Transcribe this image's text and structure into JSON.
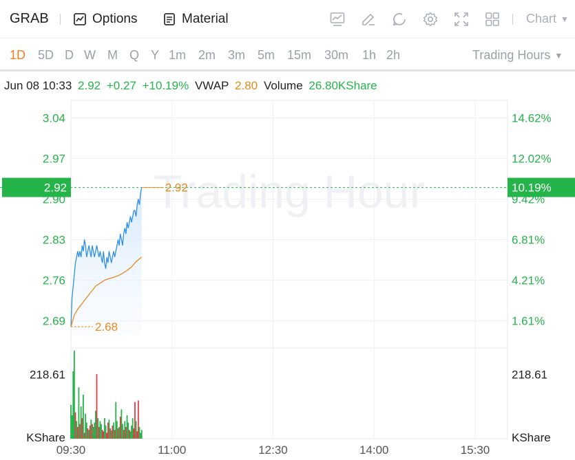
{
  "toolbar": {
    "ticker": "GRAB",
    "options_label": "Options",
    "material_label": "Material",
    "chart_label": "Chart"
  },
  "periods": [
    "1D",
    "5D",
    "D",
    "W",
    "M",
    "Q",
    "Y",
    "1m",
    "2m",
    "3m",
    "5m",
    "15m",
    "30m",
    "1h",
    "2h"
  ],
  "active_period": "1D",
  "trading_hours_label": "Trading Hours",
  "info": {
    "datetime": "Jun 08 10:33",
    "price": "2.92",
    "change": "+0.27",
    "change_pct": "+10.19%",
    "vwap_label": "VWAP",
    "vwap_value": "2.80",
    "volume_label": "Volume",
    "volume_value": "26.80KShare"
  },
  "colors": {
    "green": "#25b44a",
    "red": "#e8394a",
    "orange": "#e8891d",
    "price_line": "#2f8fe6",
    "vwap_line": "#e8891d"
  },
  "chart_data": {
    "type": "line",
    "watermark": "Trading Hour",
    "x_ticks": [
      "09:30",
      "11:00",
      "12:30",
      "14:00",
      "15:30"
    ],
    "y_ticks": [
      3.04,
      2.97,
      2.9,
      2.83,
      2.76,
      2.69
    ],
    "y_ticks_label": [
      "3.04",
      "2.97",
      "2.90",
      "2.83",
      "2.76",
      "2.69"
    ],
    "pct_ticks_label": [
      "14.62%",
      "12.02%",
      "9.42%",
      "6.81%",
      "4.21%",
      "1.61%"
    ],
    "ylim": [
      2.66,
      3.07
    ],
    "current_price": 2.92,
    "current_price_label": "2.92",
    "current_pct_label": "10.19%",
    "high_label": "2.92",
    "low_label": "2.68",
    "low_price": 2.68,
    "volume_label": "218.61",
    "volume_unit": "KShare",
    "volume_ymax": 300,
    "price_series": {
      "minutes": [
        0,
        1,
        2,
        3,
        4,
        5,
        6,
        7,
        8,
        9,
        10,
        11,
        12,
        13,
        14,
        15,
        16,
        17,
        18,
        19,
        20,
        21,
        22,
        23,
        24,
        25,
        26,
        27,
        28,
        29,
        30,
        31,
        32,
        33,
        34,
        35,
        36,
        37,
        38,
        39,
        40,
        41,
        42,
        43,
        44,
        45,
        46,
        47,
        48,
        49,
        50,
        51,
        52,
        53,
        54,
        55,
        56,
        57,
        58,
        59,
        60,
        61,
        62,
        63
      ],
      "values": [
        2.68,
        2.73,
        2.75,
        2.77,
        2.79,
        2.8,
        2.81,
        2.8,
        2.81,
        2.8,
        2.82,
        2.81,
        2.83,
        2.82,
        2.8,
        2.81,
        2.82,
        2.81,
        2.8,
        2.82,
        2.81,
        2.8,
        2.81,
        2.82,
        2.81,
        2.8,
        2.81,
        2.8,
        2.79,
        2.81,
        2.79,
        2.78,
        2.8,
        2.79,
        2.81,
        2.8,
        2.79,
        2.8,
        2.81,
        2.8,
        2.81,
        2.82,
        2.83,
        2.82,
        2.84,
        2.83,
        2.82,
        2.84,
        2.85,
        2.84,
        2.86,
        2.85,
        2.86,
        2.87,
        2.86,
        2.87,
        2.88,
        2.88,
        2.87,
        2.89,
        2.9,
        2.89,
        2.91,
        2.92
      ]
    },
    "vwap_series": {
      "minutes": [
        0,
        3,
        6,
        10,
        14,
        18,
        22,
        26,
        30,
        34,
        38,
        42,
        46,
        50,
        54,
        58,
        63
      ],
      "values": [
        2.68,
        2.7,
        2.71,
        2.72,
        2.73,
        2.74,
        2.75,
        2.755,
        2.76,
        2.763,
        2.765,
        2.768,
        2.772,
        2.777,
        2.783,
        2.792,
        2.8
      ]
    },
    "volume_bars": [
      {
        "m": 0,
        "v": 115,
        "c": "g"
      },
      {
        "m": 1,
        "v": 80,
        "c": "g"
      },
      {
        "m": 2,
        "v": 230,
        "c": "g"
      },
      {
        "m": 3,
        "v": 300,
        "c": "g"
      },
      {
        "m": 4,
        "v": 90,
        "c": "r"
      },
      {
        "m": 5,
        "v": 60,
        "c": "g"
      },
      {
        "m": 6,
        "v": 40,
        "c": "r"
      },
      {
        "m": 7,
        "v": 175,
        "c": "g"
      },
      {
        "m": 8,
        "v": 50,
        "c": "r"
      },
      {
        "m": 9,
        "v": 110,
        "c": "g"
      },
      {
        "m": 10,
        "v": 70,
        "c": "r"
      },
      {
        "m": 11,
        "v": 150,
        "c": "g"
      },
      {
        "m": 12,
        "v": 20,
        "c": "r"
      },
      {
        "m": 13,
        "v": 85,
        "c": "g"
      },
      {
        "m": 14,
        "v": 55,
        "c": "g"
      },
      {
        "m": 15,
        "v": 35,
        "c": "r"
      },
      {
        "m": 16,
        "v": 30,
        "c": "g"
      },
      {
        "m": 17,
        "v": 45,
        "c": "r"
      },
      {
        "m": 18,
        "v": 65,
        "c": "g"
      },
      {
        "m": 19,
        "v": 50,
        "c": "r"
      },
      {
        "m": 20,
        "v": 40,
        "c": "g"
      },
      {
        "m": 21,
        "v": 55,
        "c": "g"
      },
      {
        "m": 22,
        "v": 95,
        "c": "g"
      },
      {
        "m": 23,
        "v": 220,
        "c": "r"
      },
      {
        "m": 24,
        "v": 70,
        "c": "g"
      },
      {
        "m": 25,
        "v": 40,
        "c": "r"
      },
      {
        "m": 26,
        "v": 60,
        "c": "g"
      },
      {
        "m": 27,
        "v": 50,
        "c": "g"
      },
      {
        "m": 28,
        "v": 30,
        "c": "r"
      },
      {
        "m": 29,
        "v": 25,
        "c": "r"
      },
      {
        "m": 30,
        "v": 70,
        "c": "g"
      },
      {
        "m": 31,
        "v": 45,
        "c": "g"
      },
      {
        "m": 32,
        "v": 20,
        "c": "r"
      },
      {
        "m": 33,
        "v": 55,
        "c": "r"
      },
      {
        "m": 34,
        "v": 65,
        "c": "g"
      },
      {
        "m": 35,
        "v": 35,
        "c": "r"
      },
      {
        "m": 36,
        "v": 28,
        "c": "g"
      },
      {
        "m": 37,
        "v": 45,
        "c": "r"
      },
      {
        "m": 38,
        "v": 55,
        "c": "g"
      },
      {
        "m": 39,
        "v": 30,
        "c": "r"
      },
      {
        "m": 40,
        "v": 125,
        "c": "g"
      },
      {
        "m": 41,
        "v": 60,
        "c": "g"
      },
      {
        "m": 42,
        "v": 35,
        "c": "r"
      },
      {
        "m": 43,
        "v": 40,
        "c": "g"
      },
      {
        "m": 44,
        "v": 75,
        "c": "r"
      },
      {
        "m": 45,
        "v": 100,
        "c": "g"
      },
      {
        "m": 46,
        "v": 50,
        "c": "g"
      },
      {
        "m": 47,
        "v": 30,
        "c": "r"
      },
      {
        "m": 48,
        "v": 60,
        "c": "g"
      },
      {
        "m": 49,
        "v": 40,
        "c": "r"
      },
      {
        "m": 50,
        "v": 80,
        "c": "g"
      },
      {
        "m": 51,
        "v": 55,
        "c": "g"
      },
      {
        "m": 52,
        "v": 30,
        "c": "r"
      },
      {
        "m": 53,
        "v": 25,
        "c": "g"
      },
      {
        "m": 54,
        "v": 45,
        "c": "g"
      },
      {
        "m": 55,
        "v": 70,
        "c": "g"
      },
      {
        "m": 56,
        "v": 35,
        "c": "r"
      },
      {
        "m": 57,
        "v": 125,
        "c": "r"
      },
      {
        "m": 58,
        "v": 60,
        "c": "g"
      },
      {
        "m": 59,
        "v": 25,
        "c": "r"
      },
      {
        "m": 60,
        "v": 130,
        "c": "r"
      },
      {
        "m": 61,
        "v": 40,
        "c": "g"
      },
      {
        "m": 62,
        "v": 20,
        "c": "g"
      },
      {
        "m": 63,
        "v": 30,
        "c": "g"
      }
    ]
  }
}
